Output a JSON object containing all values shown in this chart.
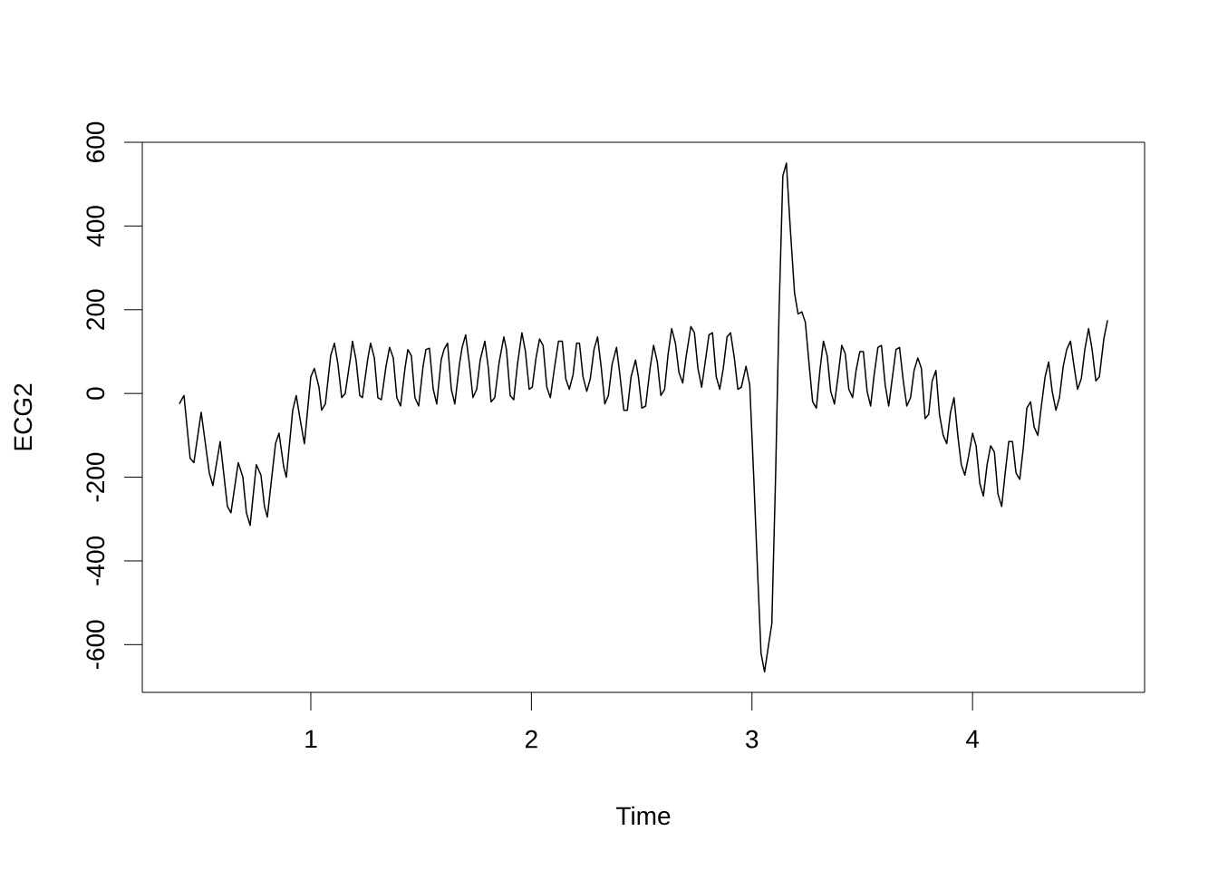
{
  "chart_data": {
    "type": "line",
    "xlabel": "Time",
    "ylabel": "ECG2",
    "xlim": [
      0.236,
      4.78
    ],
    "ylim": [
      -714,
      600
    ],
    "xticks": [
      1,
      2,
      3,
      4
    ],
    "yticks": [
      -600,
      -400,
      -200,
      0,
      200,
      400,
      600
    ],
    "x": [
      0.404,
      0.425,
      0.453,
      0.47,
      0.503,
      0.54,
      0.556,
      0.589,
      0.622,
      0.638,
      0.671,
      0.692,
      0.708,
      0.725,
      0.753,
      0.774,
      0.79,
      0.803,
      0.84,
      0.856,
      0.877,
      0.889,
      0.918,
      0.934,
      0.951,
      0.971,
      1.0,
      1.016,
      1.037,
      1.049,
      1.066,
      1.09,
      1.107,
      1.123,
      1.14,
      1.156,
      1.181,
      1.189,
      1.205,
      1.222,
      1.234,
      1.259,
      1.271,
      1.288,
      1.304,
      1.32,
      1.341,
      1.357,
      1.374,
      1.39,
      1.407,
      1.427,
      1.44,
      1.456,
      1.472,
      1.489,
      1.509,
      1.522,
      1.538,
      1.555,
      1.571,
      1.591,
      1.604,
      1.62,
      1.637,
      1.653,
      1.674,
      1.686,
      1.702,
      1.719,
      1.735,
      1.752,
      1.768,
      1.789,
      1.805,
      1.817,
      1.834,
      1.854,
      1.875,
      1.887,
      1.904,
      1.92,
      1.937,
      1.957,
      1.973,
      1.99,
      2.004,
      2.021,
      2.037,
      2.053,
      2.07,
      2.086,
      2.103,
      2.123,
      2.14,
      2.156,
      2.172,
      2.189,
      2.205,
      2.218,
      2.234,
      2.251,
      2.267,
      2.284,
      2.3,
      2.316,
      2.333,
      2.349,
      2.366,
      2.386,
      2.399,
      2.419,
      2.435,
      2.452,
      2.472,
      2.485,
      2.501,
      2.518,
      2.538,
      2.554,
      2.571,
      2.587,
      2.604,
      2.62,
      2.636,
      2.653,
      2.669,
      2.686,
      2.702,
      2.723,
      2.739,
      2.755,
      2.772,
      2.788,
      2.805,
      2.821,
      2.838,
      2.854,
      2.87,
      2.887,
      2.903,
      2.92,
      2.936,
      2.952,
      2.973,
      2.99,
      3.008,
      3.025,
      3.041,
      3.057,
      3.074,
      3.09,
      3.107,
      3.123,
      3.14,
      3.156,
      3.173,
      3.193,
      3.209,
      3.226,
      3.242,
      3.259,
      3.275,
      3.292,
      3.308,
      3.324,
      3.341,
      3.357,
      3.374,
      3.39,
      3.407,
      3.423,
      3.439,
      3.456,
      3.472,
      3.489,
      3.505,
      3.522,
      3.538,
      3.554,
      3.571,
      3.587,
      3.604,
      3.62,
      3.637,
      3.653,
      3.669,
      3.686,
      3.702,
      3.719,
      3.735,
      3.752,
      3.768,
      3.785,
      3.801,
      3.817,
      3.834,
      3.85,
      3.867,
      3.883,
      3.9,
      3.916,
      3.933,
      3.949,
      3.965,
      3.982,
      4.0,
      4.016,
      4.033,
      4.049,
      4.066,
      4.082,
      4.099,
      4.115,
      4.132,
      4.148,
      4.164,
      4.181,
      4.197,
      4.214,
      4.23,
      4.246,
      4.263,
      4.279,
      4.296,
      4.312,
      4.329,
      4.345,
      4.361,
      4.378,
      4.394,
      4.411,
      4.427,
      4.444,
      4.46,
      4.476,
      4.493,
      4.509,
      4.526,
      4.542,
      4.559,
      4.575,
      4.595,
      4.612
    ],
    "series": [
      {
        "color": "#000000",
        "values": [
          -25,
          -5,
          -155,
          -165,
          -45,
          -190,
          -220,
          -115,
          -270,
          -285,
          -165,
          -200,
          -285,
          -315,
          -170,
          -195,
          -270,
          -295,
          -120,
          -95,
          -175,
          -200,
          -40,
          -5,
          -60,
          -120,
          40,
          60,
          15,
          -40,
          -25,
          90,
          120,
          70,
          -10,
          0,
          90,
          125,
          80,
          -5,
          -10,
          85,
          120,
          85,
          -10,
          -15,
          65,
          110,
          85,
          -10,
          -30,
          60,
          105,
          90,
          -10,
          -30,
          65,
          105,
          108,
          10,
          -25,
          80,
          105,
          120,
          10,
          -25,
          70,
          110,
          140,
          70,
          -10,
          10,
          80,
          125,
          60,
          -20,
          -10,
          75,
          135,
          105,
          -5,
          -15,
          70,
          145,
          100,
          10,
          15,
          85,
          130,
          115,
          15,
          -10,
          55,
          125,
          125,
          35,
          10,
          45,
          120,
          120,
          40,
          5,
          35,
          105,
          135,
          65,
          -25,
          -5,
          70,
          110,
          55,
          -40,
          -40,
          40,
          80,
          40,
          -35,
          -30,
          60,
          115,
          75,
          -5,
          10,
          95,
          155,
          120,
          50,
          25,
          90,
          160,
          145,
          60,
          15,
          75,
          140,
          145,
          40,
          10,
          60,
          135,
          145,
          85,
          10,
          15,
          65,
          20,
          -200,
          -420,
          -620,
          -665,
          -605,
          -550,
          -200,
          200,
          520,
          550,
          400,
          240,
          190,
          195,
          170,
          70,
          -20,
          -35,
          55,
          125,
          90,
          5,
          -25,
          40,
          115,
          95,
          10,
          -10,
          55,
          100,
          100,
          5,
          -30,
          45,
          110,
          115,
          20,
          -30,
          40,
          105,
          110,
          30,
          -30,
          -10,
          55,
          85,
          60,
          -60,
          -50,
          30,
          55,
          -50,
          -100,
          -120,
          -45,
          -10,
          -100,
          -170,
          -195,
          -150,
          -95,
          -125,
          -215,
          -245,
          -170,
          -125,
          -140,
          -240,
          -270,
          -190,
          -115,
          -115,
          -190,
          -205,
          -130,
          -35,
          -20,
          -80,
          -100,
          -30,
          40,
          75,
          5,
          -40,
          -10,
          65,
          105,
          125,
          65,
          10,
          35,
          105,
          155,
          105,
          30,
          40,
          130,
          175
        ]
      }
    ]
  }
}
